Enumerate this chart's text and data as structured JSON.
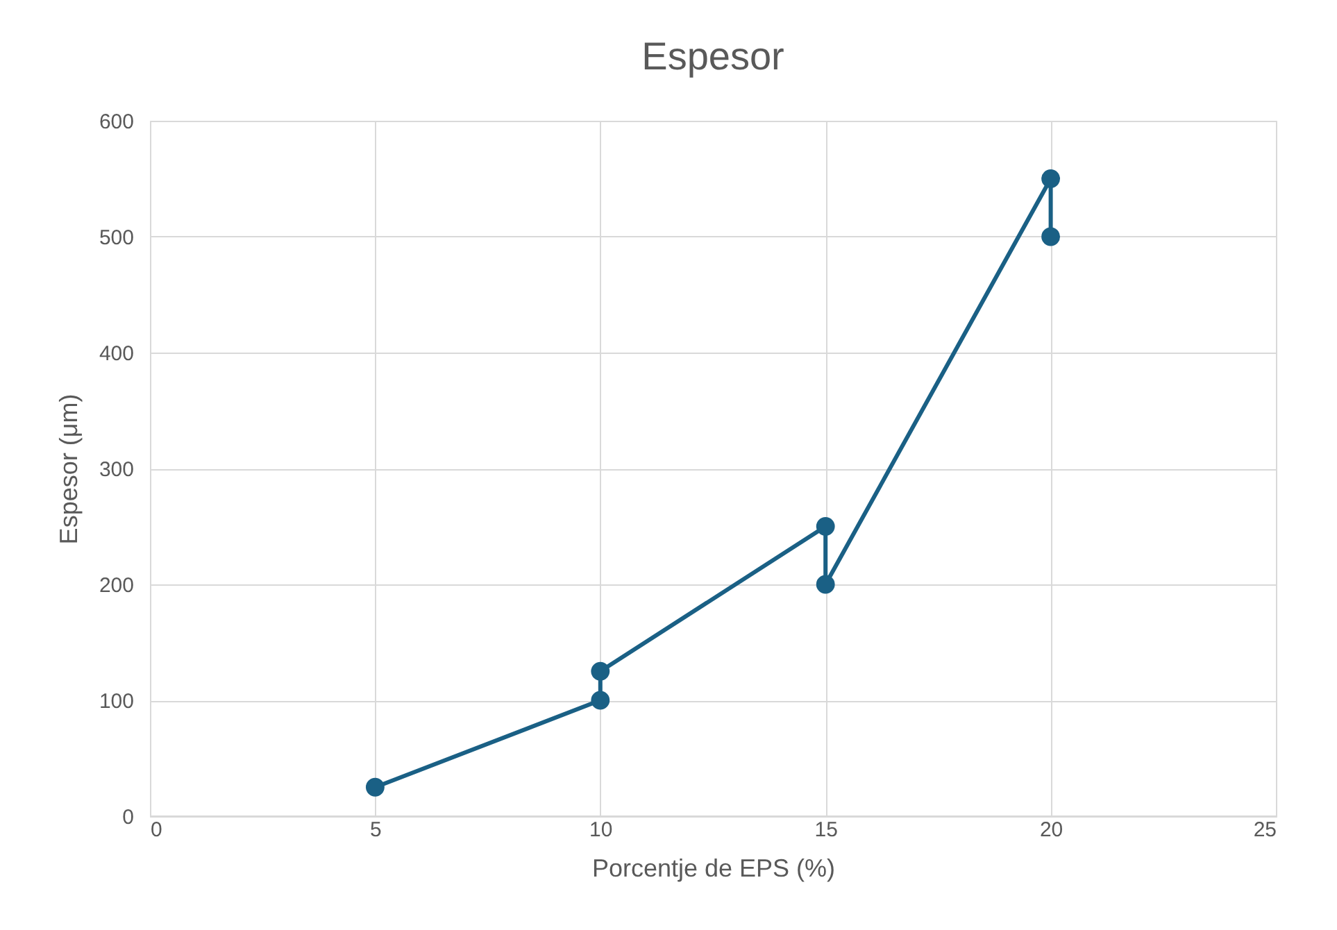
{
  "chart_data": {
    "type": "line",
    "title": "Espesor",
    "xlabel": "Porcentje de EPS (%)",
    "ylabel": "Espesor (μm)",
    "x": [
      5,
      10,
      10,
      15,
      15,
      20,
      20
    ],
    "series": [
      {
        "color": "#1a6085",
        "values": [
          25,
          100,
          125,
          250,
          200,
          550,
          500
        ]
      }
    ],
    "xlim": [
      0,
      25
    ],
    "xticks": [
      0,
      5,
      10,
      15,
      20,
      25
    ],
    "ylim": [
      0,
      600
    ],
    "yticks": [
      0,
      100,
      200,
      300,
      400,
      500,
      600
    ],
    "grid": true,
    "marker": "circle",
    "line_style": "solid"
  }
}
